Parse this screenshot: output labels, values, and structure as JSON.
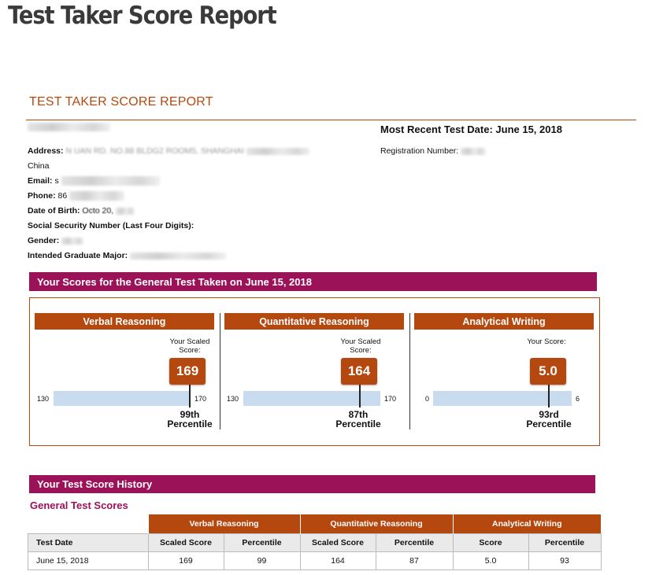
{
  "heading": "Test Taker Score Report",
  "report_title": "TEST TAKER SCORE REPORT",
  "recent_test_date": "Most Recent Test Date: June 15, 2018",
  "registration_label": "Registration Number:",
  "info": {
    "address_label": "Address:",
    "address_value": "N          UAN RD. NO.88 BLDG2 ROOM5, SHANGHAI",
    "country": "China",
    "email_label": "Email:",
    "email_value": "s",
    "phone_label": "Phone:",
    "phone_value": "86",
    "dob_label": "Date of Birth:",
    "dob_value": "Octo    20,",
    "ssn_label": "Social Security Number (Last Four Digits):",
    "gender_label": "Gender:",
    "major_label": "Intended Graduate Major:"
  },
  "scores_band": "Your Scores for the General Test Taken on June 15, 2018",
  "panels": [
    {
      "title": "Verbal Reasoning",
      "scaled_label": "Your Scaled Score:",
      "score": "169",
      "min": "130",
      "max": "170",
      "percentile": "99th",
      "percentile_word": "Percentile"
    },
    {
      "title": "Quantitative Reasoning",
      "scaled_label": "Your Scaled Score:",
      "score": "164",
      "min": "130",
      "max": "170",
      "percentile": "87th",
      "percentile_word": "Percentile"
    },
    {
      "title": "Analytical Writing",
      "scaled_label": "Your Score:",
      "score": "5.0",
      "min": "0",
      "max": "6",
      "percentile": "93rd",
      "percentile_word": "Percentile"
    }
  ],
  "history_band": "Your Test Score History",
  "history_subheading": "General Test Scores",
  "history": {
    "groups": [
      "Verbal Reasoning",
      "Quantitative Reasoning",
      "Analytical Writing"
    ],
    "columns": [
      "Test Date",
      "Scaled Score",
      "Percentile",
      "Scaled Score",
      "Percentile",
      "Score",
      "Percentile"
    ],
    "rows": [
      [
        "June 15, 2018",
        "169",
        "99",
        "164",
        "87",
        "5.0",
        "93"
      ]
    ]
  },
  "colors": {
    "accent": "#b5480f",
    "band": "#9c1259",
    "bar": "#c9dcef"
  }
}
